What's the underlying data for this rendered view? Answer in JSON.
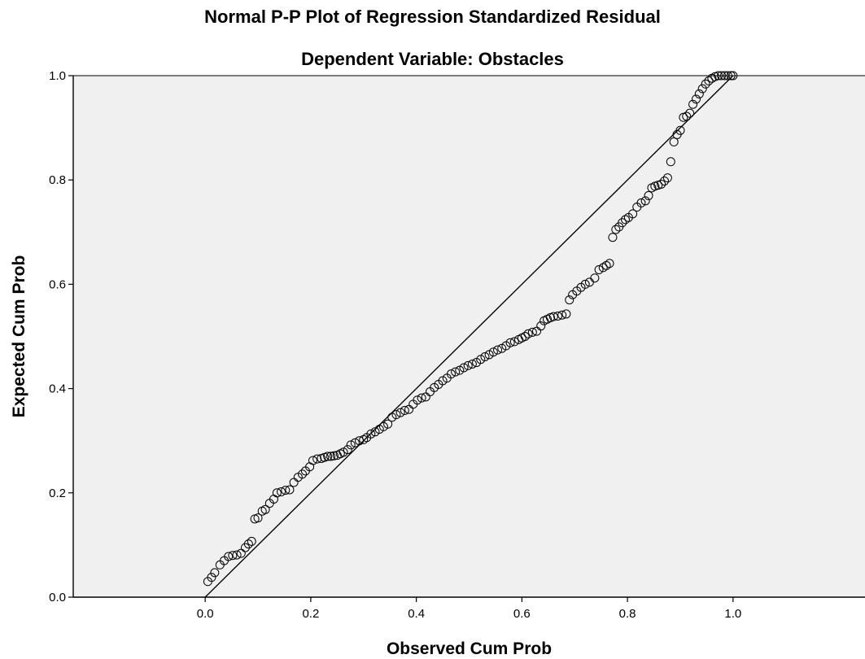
{
  "chart_data": {
    "type": "scatter",
    "title": "Normal P-P Plot of Regression Standardized Residual",
    "subtitle": "Dependent Variable: Obstacles",
    "xlabel": "Observed Cum Prob",
    "ylabel": "Expected Cum Prob",
    "xlim": [
      -0.25,
      1.25
    ],
    "ylim": [
      0.0,
      1.0
    ],
    "xticks": [
      "0.0",
      "0.2",
      "0.4",
      "0.6",
      "0.8",
      "1.0"
    ],
    "yticks": [
      "0.0",
      "0.2",
      "0.4",
      "0.6",
      "0.8",
      "1.0"
    ],
    "reference_line": {
      "from": [
        0.0,
        0.0
      ],
      "to": [
        1.0,
        1.0
      ]
    },
    "plot_background": "#f0f0f0",
    "marker_color": "#000000",
    "points": [
      [
        0.005,
        0.03
      ],
      [
        0.012,
        0.038
      ],
      [
        0.018,
        0.047
      ],
      [
        0.028,
        0.062
      ],
      [
        0.036,
        0.07
      ],
      [
        0.044,
        0.078
      ],
      [
        0.052,
        0.08
      ],
      [
        0.06,
        0.081
      ],
      [
        0.068,
        0.084
      ],
      [
        0.076,
        0.095
      ],
      [
        0.082,
        0.102
      ],
      [
        0.088,
        0.107
      ],
      [
        0.094,
        0.15
      ],
      [
        0.1,
        0.152
      ],
      [
        0.108,
        0.165
      ],
      [
        0.114,
        0.168
      ],
      [
        0.122,
        0.18
      ],
      [
        0.13,
        0.188
      ],
      [
        0.136,
        0.2
      ],
      [
        0.144,
        0.202
      ],
      [
        0.152,
        0.205
      ],
      [
        0.16,
        0.206
      ],
      [
        0.168,
        0.22
      ],
      [
        0.176,
        0.23
      ],
      [
        0.184,
        0.236
      ],
      [
        0.19,
        0.242
      ],
      [
        0.198,
        0.25
      ],
      [
        0.204,
        0.262
      ],
      [
        0.212,
        0.265
      ],
      [
        0.22,
        0.266
      ],
      [
        0.226,
        0.268
      ],
      [
        0.232,
        0.27
      ],
      [
        0.238,
        0.27
      ],
      [
        0.244,
        0.271
      ],
      [
        0.25,
        0.272
      ],
      [
        0.256,
        0.275
      ],
      [
        0.262,
        0.278
      ],
      [
        0.27,
        0.283
      ],
      [
        0.276,
        0.292
      ],
      [
        0.284,
        0.296
      ],
      [
        0.292,
        0.3
      ],
      [
        0.3,
        0.302
      ],
      [
        0.306,
        0.306
      ],
      [
        0.314,
        0.313
      ],
      [
        0.322,
        0.317
      ],
      [
        0.33,
        0.322
      ],
      [
        0.338,
        0.327
      ],
      [
        0.346,
        0.332
      ],
      [
        0.354,
        0.345
      ],
      [
        0.362,
        0.35
      ],
      [
        0.37,
        0.354
      ],
      [
        0.378,
        0.358
      ],
      [
        0.386,
        0.36
      ],
      [
        0.394,
        0.37
      ],
      [
        0.402,
        0.378
      ],
      [
        0.41,
        0.382
      ],
      [
        0.418,
        0.384
      ],
      [
        0.426,
        0.394
      ],
      [
        0.434,
        0.402
      ],
      [
        0.442,
        0.408
      ],
      [
        0.45,
        0.415
      ],
      [
        0.458,
        0.42
      ],
      [
        0.466,
        0.428
      ],
      [
        0.474,
        0.432
      ],
      [
        0.482,
        0.435
      ],
      [
        0.49,
        0.44
      ],
      [
        0.498,
        0.444
      ],
      [
        0.506,
        0.447
      ],
      [
        0.514,
        0.45
      ],
      [
        0.522,
        0.456
      ],
      [
        0.53,
        0.461
      ],
      [
        0.538,
        0.465
      ],
      [
        0.546,
        0.47
      ],
      [
        0.554,
        0.474
      ],
      [
        0.562,
        0.477
      ],
      [
        0.57,
        0.482
      ],
      [
        0.578,
        0.488
      ],
      [
        0.586,
        0.49
      ],
      [
        0.594,
        0.494
      ],
      [
        0.6,
        0.497
      ],
      [
        0.606,
        0.5
      ],
      [
        0.612,
        0.505
      ],
      [
        0.62,
        0.508
      ],
      [
        0.628,
        0.51
      ],
      [
        0.636,
        0.52
      ],
      [
        0.642,
        0.53
      ],
      [
        0.648,
        0.533
      ],
      [
        0.654,
        0.536
      ],
      [
        0.66,
        0.538
      ],
      [
        0.668,
        0.539
      ],
      [
        0.676,
        0.541
      ],
      [
        0.684,
        0.543
      ],
      [
        0.69,
        0.57
      ],
      [
        0.696,
        0.58
      ],
      [
        0.704,
        0.587
      ],
      [
        0.712,
        0.594
      ],
      [
        0.72,
        0.6
      ],
      [
        0.728,
        0.604
      ],
      [
        0.738,
        0.612
      ],
      [
        0.746,
        0.628
      ],
      [
        0.754,
        0.632
      ],
      [
        0.76,
        0.636
      ],
      [
        0.766,
        0.64
      ],
      [
        0.772,
        0.69
      ],
      [
        0.778,
        0.705
      ],
      [
        0.784,
        0.71
      ],
      [
        0.79,
        0.718
      ],
      [
        0.796,
        0.724
      ],
      [
        0.802,
        0.728
      ],
      [
        0.81,
        0.735
      ],
      [
        0.818,
        0.748
      ],
      [
        0.826,
        0.756
      ],
      [
        0.834,
        0.76
      ],
      [
        0.84,
        0.77
      ],
      [
        0.846,
        0.785
      ],
      [
        0.852,
        0.788
      ],
      [
        0.858,
        0.79
      ],
      [
        0.864,
        0.792
      ],
      [
        0.87,
        0.798
      ],
      [
        0.876,
        0.804
      ],
      [
        0.882,
        0.835
      ],
      [
        0.888,
        0.873
      ],
      [
        0.894,
        0.887
      ],
      [
        0.9,
        0.895
      ],
      [
        0.906,
        0.92
      ],
      [
        0.912,
        0.922
      ],
      [
        0.918,
        0.928
      ],
      [
        0.924,
        0.945
      ],
      [
        0.93,
        0.955
      ],
      [
        0.936,
        0.965
      ],
      [
        0.942,
        0.975
      ],
      [
        0.948,
        0.984
      ],
      [
        0.954,
        0.99
      ],
      [
        0.96,
        0.995
      ],
      [
        0.966,
        0.998
      ],
      [
        0.972,
        1.0
      ],
      [
        0.978,
        1.0
      ],
      [
        0.984,
        1.0
      ],
      [
        0.99,
        1.0
      ],
      [
        0.996,
        1.0
      ],
      [
        1.0,
        1.0
      ]
    ]
  }
}
